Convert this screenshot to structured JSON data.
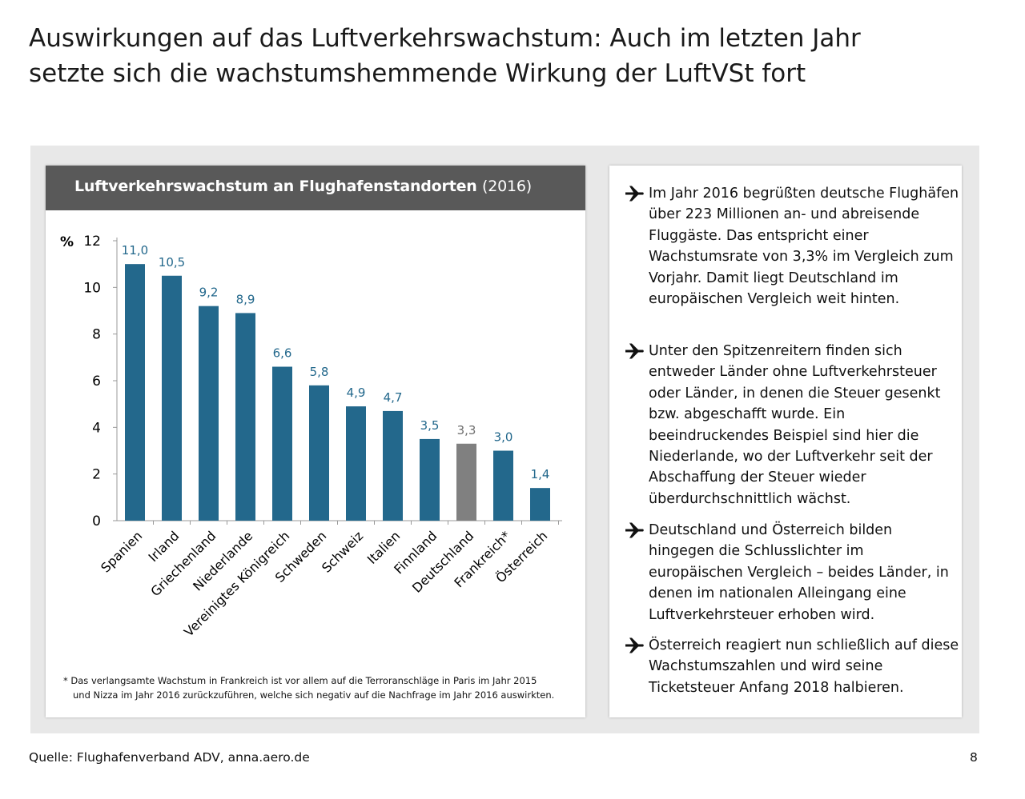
{
  "slide": {
    "title_line1": "Auswirkungen auf das Luftverkehrswachstum: Auch im letzten Jahr",
    "title_line2": "setzte sich die wachstumshemmende Wirkung der LuftVSt fort",
    "source": "Quelle: Flughafenverband ADV, anna.aero.de",
    "page_number": "8"
  },
  "chart_header": {
    "title": "Luftverkehrswachstum an Flughafenstandorten",
    "year": "(2016)"
  },
  "chart_data": {
    "type": "bar",
    "title": "Luftverkehrswachstum an Flughafenstandorten (2016)",
    "ylabel": "%",
    "ylim": [
      0,
      12
    ],
    "yticks": [
      "0",
      "2",
      "4",
      "6",
      "8",
      "10",
      "12"
    ],
    "categories": [
      "Spanien",
      "Irland",
      "Griechenland",
      "Niederlande",
      "Vereinigtes Königreich",
      "Schweden",
      "Schweiz",
      "Italien",
      "Finnland",
      "Deutschland",
      "Frankreich*",
      "Österreich"
    ],
    "values": [
      11.0,
      10.5,
      9.2,
      8.9,
      6.6,
      5.8,
      4.9,
      4.7,
      3.5,
      3.3,
      3.0,
      1.4
    ],
    "value_labels": [
      "11,0",
      "10,5",
      "9,2",
      "8,9",
      "6,6",
      "5,8",
      "4,9",
      "4,7",
      "3,5",
      "3,3",
      "3,0",
      "1,4"
    ],
    "highlight_category": "Deutschland",
    "colors": {
      "bar": "#23688c",
      "highlight": "#808080",
      "label": "#23688c",
      "highlight_label": "#6e6e6e"
    },
    "grid": false
  },
  "footnote": {
    "line1": "* Das verlangsamte Wachstum in Frankreich ist vor allem auf die Terroranschläge in Paris im Jahr 2015",
    "line2": "und Nizza im Jahr 2016 zurückzuführen, welche sich negativ auf die Nachfrage im Jahr 2016 auswirkten."
  },
  "bullets": [
    {
      "icon": "airplane-icon",
      "text": "Im Jahr 2016 begrüßten deutsche Flughäfen über 223 Millionen an- und abreisende Fluggäste. Das entspricht einer Wachstumsrate von 3,3% im Vergleich zum Vorjahr. Damit liegt Deutschland im europäischen Vergleich weit hinten."
    },
    {
      "icon": "airplane-icon",
      "text": "Unter den Spitzenreitern finden sich entweder Länder ohne Luftverkehrsteuer oder Länder, in denen die Steuer gesenkt bzw. abgeschafft wurde. Ein beeindruckendes Beispiel sind hier die Niederlande, wo der Luftverkehr seit der Abschaffung der Steuer wieder überdurchschnittlich wächst."
    },
    {
      "icon": "airplane-icon",
      "text": "Deutschland und Österreich bilden hingegen die Schlusslichter im europäischen Vergleich – beides Länder, in denen im nationalen Alleingang eine Luftverkehrsteuer erhoben wird."
    },
    {
      "icon": "airplane-icon",
      "text": "Österreich reagiert nun schließlich auf diese Wachstumszahlen und wird seine Ticketsteuer Anfang 2018 halbieren."
    }
  ]
}
